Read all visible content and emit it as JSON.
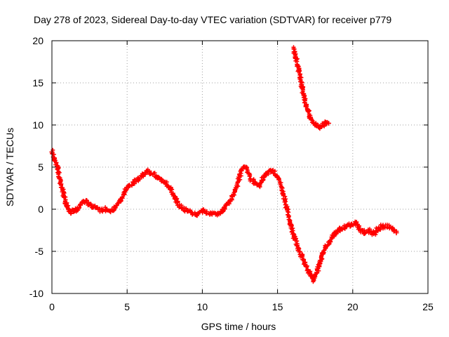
{
  "chart_data": {
    "type": "scatter",
    "title": "Day 278 of 2023, Sidereal Day-to-day VTEC variation (SDTVAR) for receiver p779",
    "xlabel": "GPS time / hours",
    "ylabel": "SDTVAR / TECUs",
    "xlim": [
      0,
      25
    ],
    "ylim": [
      -10,
      20
    ],
    "xticks": [
      0,
      5,
      10,
      15,
      20,
      25
    ],
    "yticks": [
      -10,
      -5,
      0,
      5,
      10,
      15,
      20
    ],
    "grid": true,
    "marker": "plus",
    "series": [
      {
        "name": "SDTVAR",
        "color": "#ff0000",
        "trace_a": {
          "x": [
            0.0,
            0.2,
            0.4,
            0.6,
            0.8,
            1.0,
            1.2,
            1.5,
            1.8,
            2.0,
            2.3,
            2.6,
            3.0,
            3.3,
            3.6,
            3.9,
            4.2,
            4.5,
            4.8,
            5.0,
            5.4,
            5.6,
            6.0,
            6.3,
            6.6,
            7.0,
            7.3,
            7.6,
            7.9,
            8.2,
            8.5,
            8.8,
            9.0,
            9.3,
            9.6,
            10.0,
            10.3,
            10.6,
            11.0,
            11.3,
            11.6,
            12.0,
            12.3,
            12.6,
            12.9,
            13.2,
            13.5,
            13.8,
            14.1,
            14.4,
            14.7,
            15.0,
            15.3,
            15.6,
            15.9,
            16.1,
            16.3,
            16.6,
            16.9,
            17.2,
            17.4,
            17.6,
            17.8,
            18.0,
            18.2,
            18.5,
            18.8,
            19.0,
            19.3,
            19.6,
            19.9,
            20.2,
            20.5,
            20.8,
            21.1,
            21.4,
            21.7,
            22.0,
            22.3,
            22.6,
            22.9
          ],
          "y": [
            6.8,
            5.8,
            4.8,
            3.0,
            1.5,
            0.3,
            -0.3,
            -0.2,
            0.2,
            0.8,
            1.0,
            0.4,
            0.2,
            -0.1,
            0.0,
            -0.3,
            0.2,
            1.0,
            2.0,
            2.6,
            3.2,
            3.3,
            4.0,
            4.5,
            4.3,
            3.8,
            3.5,
            3.0,
            2.5,
            1.2,
            0.3,
            0.1,
            -0.2,
            -0.4,
            -0.6,
            -0.2,
            -0.3,
            -0.5,
            -0.5,
            -0.3,
            0.5,
            1.5,
            2.8,
            4.6,
            5.0,
            3.6,
            3.2,
            2.8,
            3.8,
            4.4,
            4.6,
            3.8,
            2.5,
            0.3,
            -2.0,
            -3.2,
            -4.3,
            -5.5,
            -6.8,
            -7.9,
            -8.4,
            -7.5,
            -6.5,
            -5.3,
            -4.5,
            -3.8,
            -3.0,
            -2.5,
            -2.3,
            -2.0,
            -1.8,
            -1.6,
            -2.5,
            -2.8,
            -2.6,
            -2.9,
            -2.3,
            -2.0,
            -2.1,
            -2.3,
            -2.8
          ]
        },
        "trace_b": {
          "x": [
            16.1,
            16.2,
            16.4,
            16.6,
            16.8,
            17.0,
            17.2,
            17.4,
            17.6,
            17.8,
            18.0,
            18.2,
            18.4
          ],
          "y": [
            19.0,
            18.0,
            16.5,
            14.8,
            13.0,
            11.8,
            10.8,
            10.2,
            9.9,
            9.8,
            10.0,
            10.3,
            10.2
          ]
        }
      }
    ]
  }
}
